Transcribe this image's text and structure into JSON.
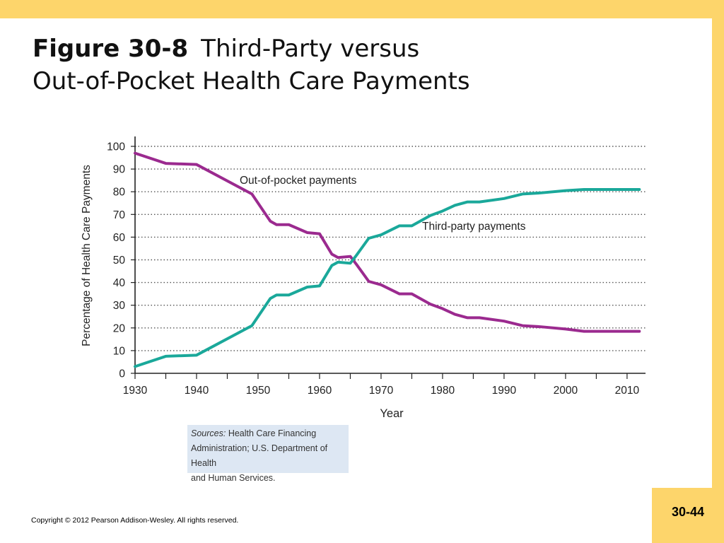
{
  "slide": {
    "figure_label": "Figure 30-8",
    "title_line1": "Third-Party versus",
    "title_line2": "Out-of-Pocket Health Care Payments",
    "sources_label": "Sources:",
    "sources_line1": "Health Care Financing",
    "sources_line2": "Administration; U.S. Department of Health",
    "sources_line3": "and Human Services.",
    "copyright": "Copyright © 2012 Pearson Addison-Wesley. All rights reserved.",
    "page_number": "30-44"
  },
  "colors": {
    "frame": "#fdd56b",
    "out_of_pocket": "#9b2a8f",
    "third_party": "#1aa89a",
    "sources_bg": "#dde7f3"
  },
  "chart_data": {
    "type": "line",
    "title": "",
    "xlabel": "Year",
    "ylabel": "Percentage of Health Care Payments",
    "xlim": [
      1930,
      2013
    ],
    "ylim": [
      0,
      100
    ],
    "x_ticks": [
      1930,
      1940,
      1950,
      1960,
      1970,
      1980,
      1990,
      2000,
      2010
    ],
    "y_ticks": [
      0,
      10,
      20,
      30,
      40,
      50,
      60,
      70,
      80,
      90,
      100
    ],
    "grid": "horizontal dotted",
    "series": [
      {
        "name": "Out-of-pocket payments",
        "color": "#9b2a8f",
        "x": [
          1930,
          1935,
          1940,
          1949,
          1952,
          1953,
          1955,
          1958,
          1960,
          1962,
          1963,
          1965,
          1966,
          1968,
          1970,
          1973,
          1975,
          1978,
          1980,
          1982,
          1984,
          1986,
          1990,
          1993,
          1996,
          2000,
          2003,
          2006,
          2012
        ],
        "values": [
          97,
          92.5,
          92,
          79,
          67,
          65.5,
          65.5,
          62,
          61.5,
          52.5,
          51,
          51.5,
          48,
          40.5,
          39,
          35,
          35,
          30.5,
          28.5,
          26,
          24.5,
          24.5,
          23,
          21,
          20.5,
          19.5,
          18.5,
          18.5,
          18.5
        ]
      },
      {
        "name": "Third-party payments",
        "color": "#1aa89a",
        "x": [
          1930,
          1935,
          1940,
          1949,
          1952,
          1953,
          1955,
          1958,
          1960,
          1962,
          1963,
          1965,
          1966,
          1968,
          1970,
          1973,
          1975,
          1978,
          1980,
          1982,
          1984,
          1986,
          1990,
          1993,
          1996,
          2000,
          2003,
          2006,
          2012
        ],
        "values": [
          3,
          7.5,
          8,
          21,
          33,
          34.5,
          34.5,
          38,
          38.5,
          47.5,
          49,
          48.5,
          52,
          59.5,
          61,
          65,
          65,
          69.5,
          71.5,
          74,
          75.5,
          75.5,
          77,
          79,
          79.5,
          80.5,
          81,
          81,
          81
        ]
      }
    ],
    "annotations": [
      "Out-of-pocket payments",
      "Third-party payments"
    ]
  }
}
